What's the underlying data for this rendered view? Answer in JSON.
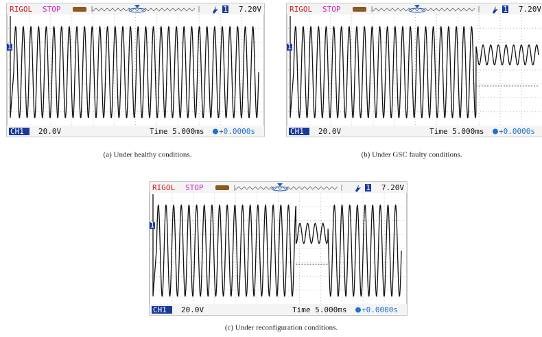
{
  "panels": [
    {
      "header": {
        "brand": "RIGOL",
        "status": "STOP",
        "trigger_source": "1",
        "trigger_level": "7.20V"
      },
      "channel_marker": "1",
      "footer": {
        "channel": "CH1",
        "volts_div": "20.0V",
        "timebase": "Time 5.000ms",
        "offset": "+0.0000s"
      },
      "caption": "(a) Under healthy conditions."
    },
    {
      "header": {
        "brand": "RIGOL",
        "status": "STOP",
        "trigger_source": "1",
        "trigger_level": "7.20V"
      },
      "channel_marker": "1",
      "footer": {
        "channel": "CH1",
        "volts_div": "20.0V",
        "timebase": "Time 5.000ms",
        "offset": "+0.0000s"
      },
      "caption": "(b) Under GSC faulty conditions."
    },
    {
      "header": {
        "brand": "RIGOL",
        "status": "STOP",
        "trigger_source": "1",
        "trigger_level": "7.20V"
      },
      "channel_marker": "1",
      "footer": {
        "channel": "CH1",
        "volts_div": "20.0V",
        "timebase": "Time 5.000ms",
        "offset": "+0.0000s"
      },
      "caption": "(c) Under reconfiguration conditions."
    }
  ]
}
